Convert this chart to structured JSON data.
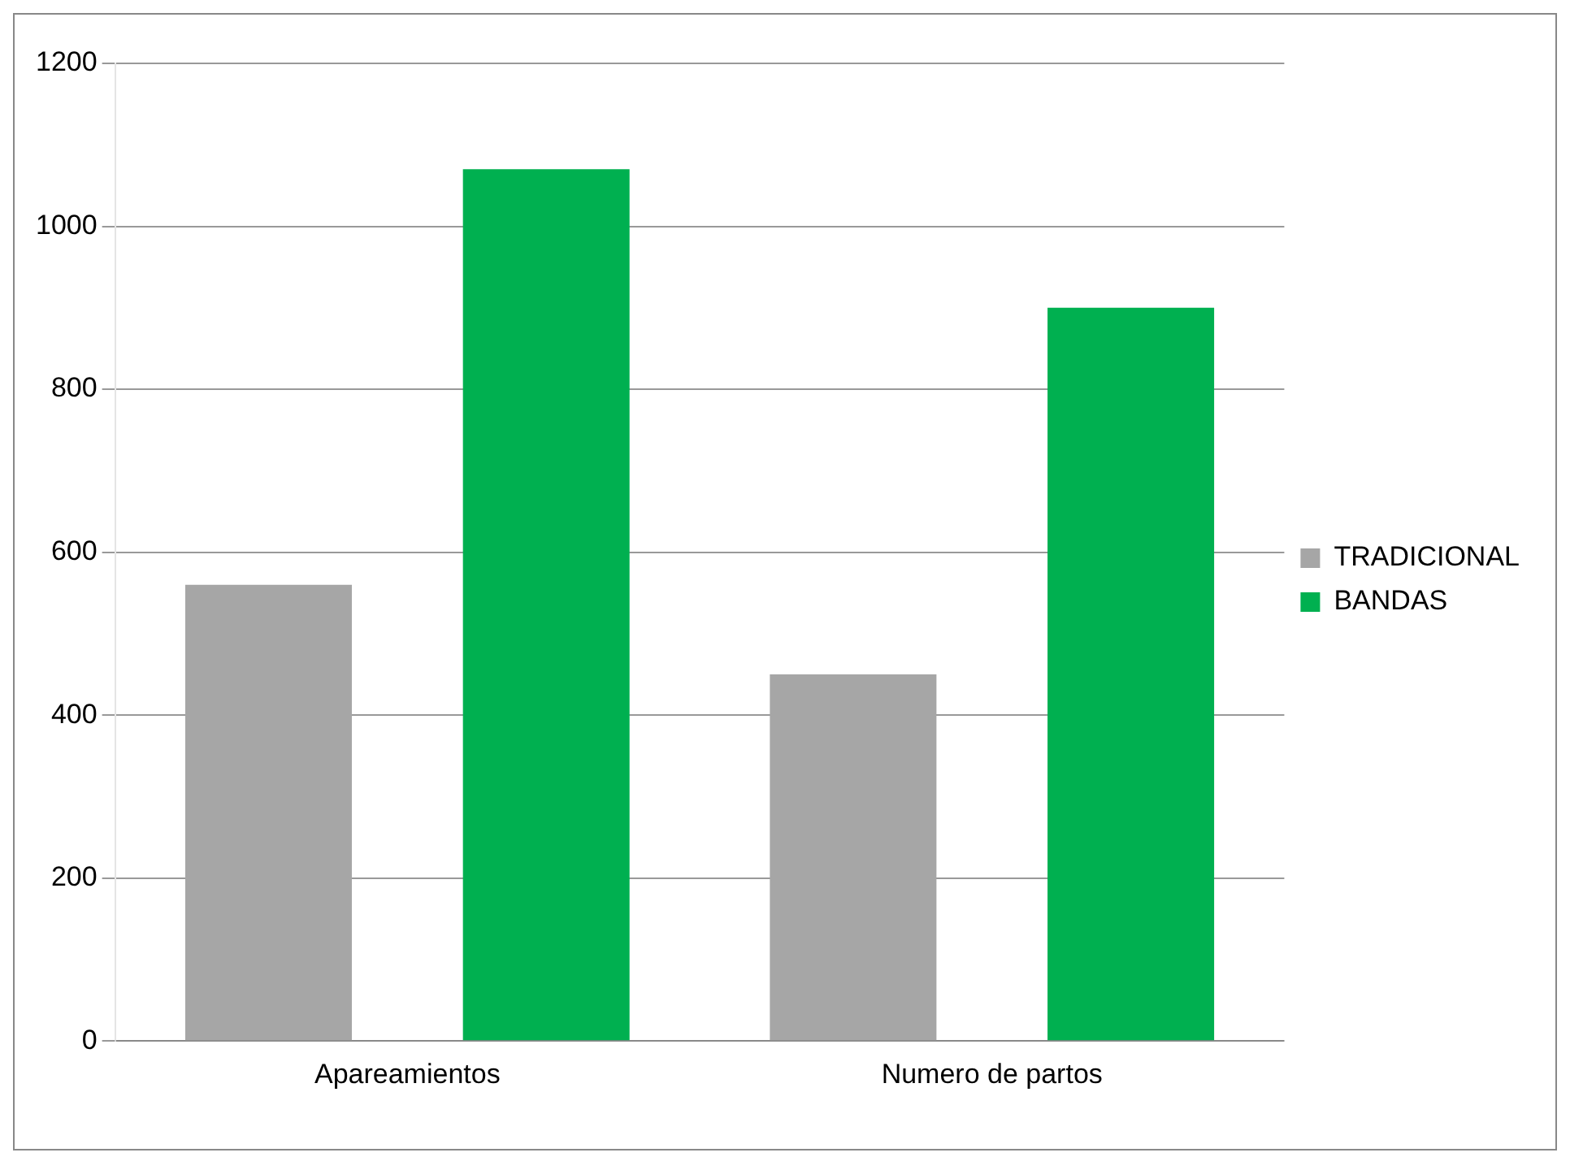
{
  "chart_data": {
    "type": "bar",
    "categories": [
      "Apareamientos",
      "Numero de partos"
    ],
    "series": [
      {
        "name": "TRADICIONAL",
        "color": "#a6a6a6",
        "values": [
          560,
          450
        ]
      },
      {
        "name": "BANDAS",
        "color": "#00b050",
        "values": [
          1070,
          900
        ]
      }
    ],
    "ylim": [
      0,
      1200
    ],
    "yticks": [
      0,
      200,
      400,
      600,
      800,
      1000,
      1200
    ],
    "grid": "y",
    "legend": "right"
  }
}
